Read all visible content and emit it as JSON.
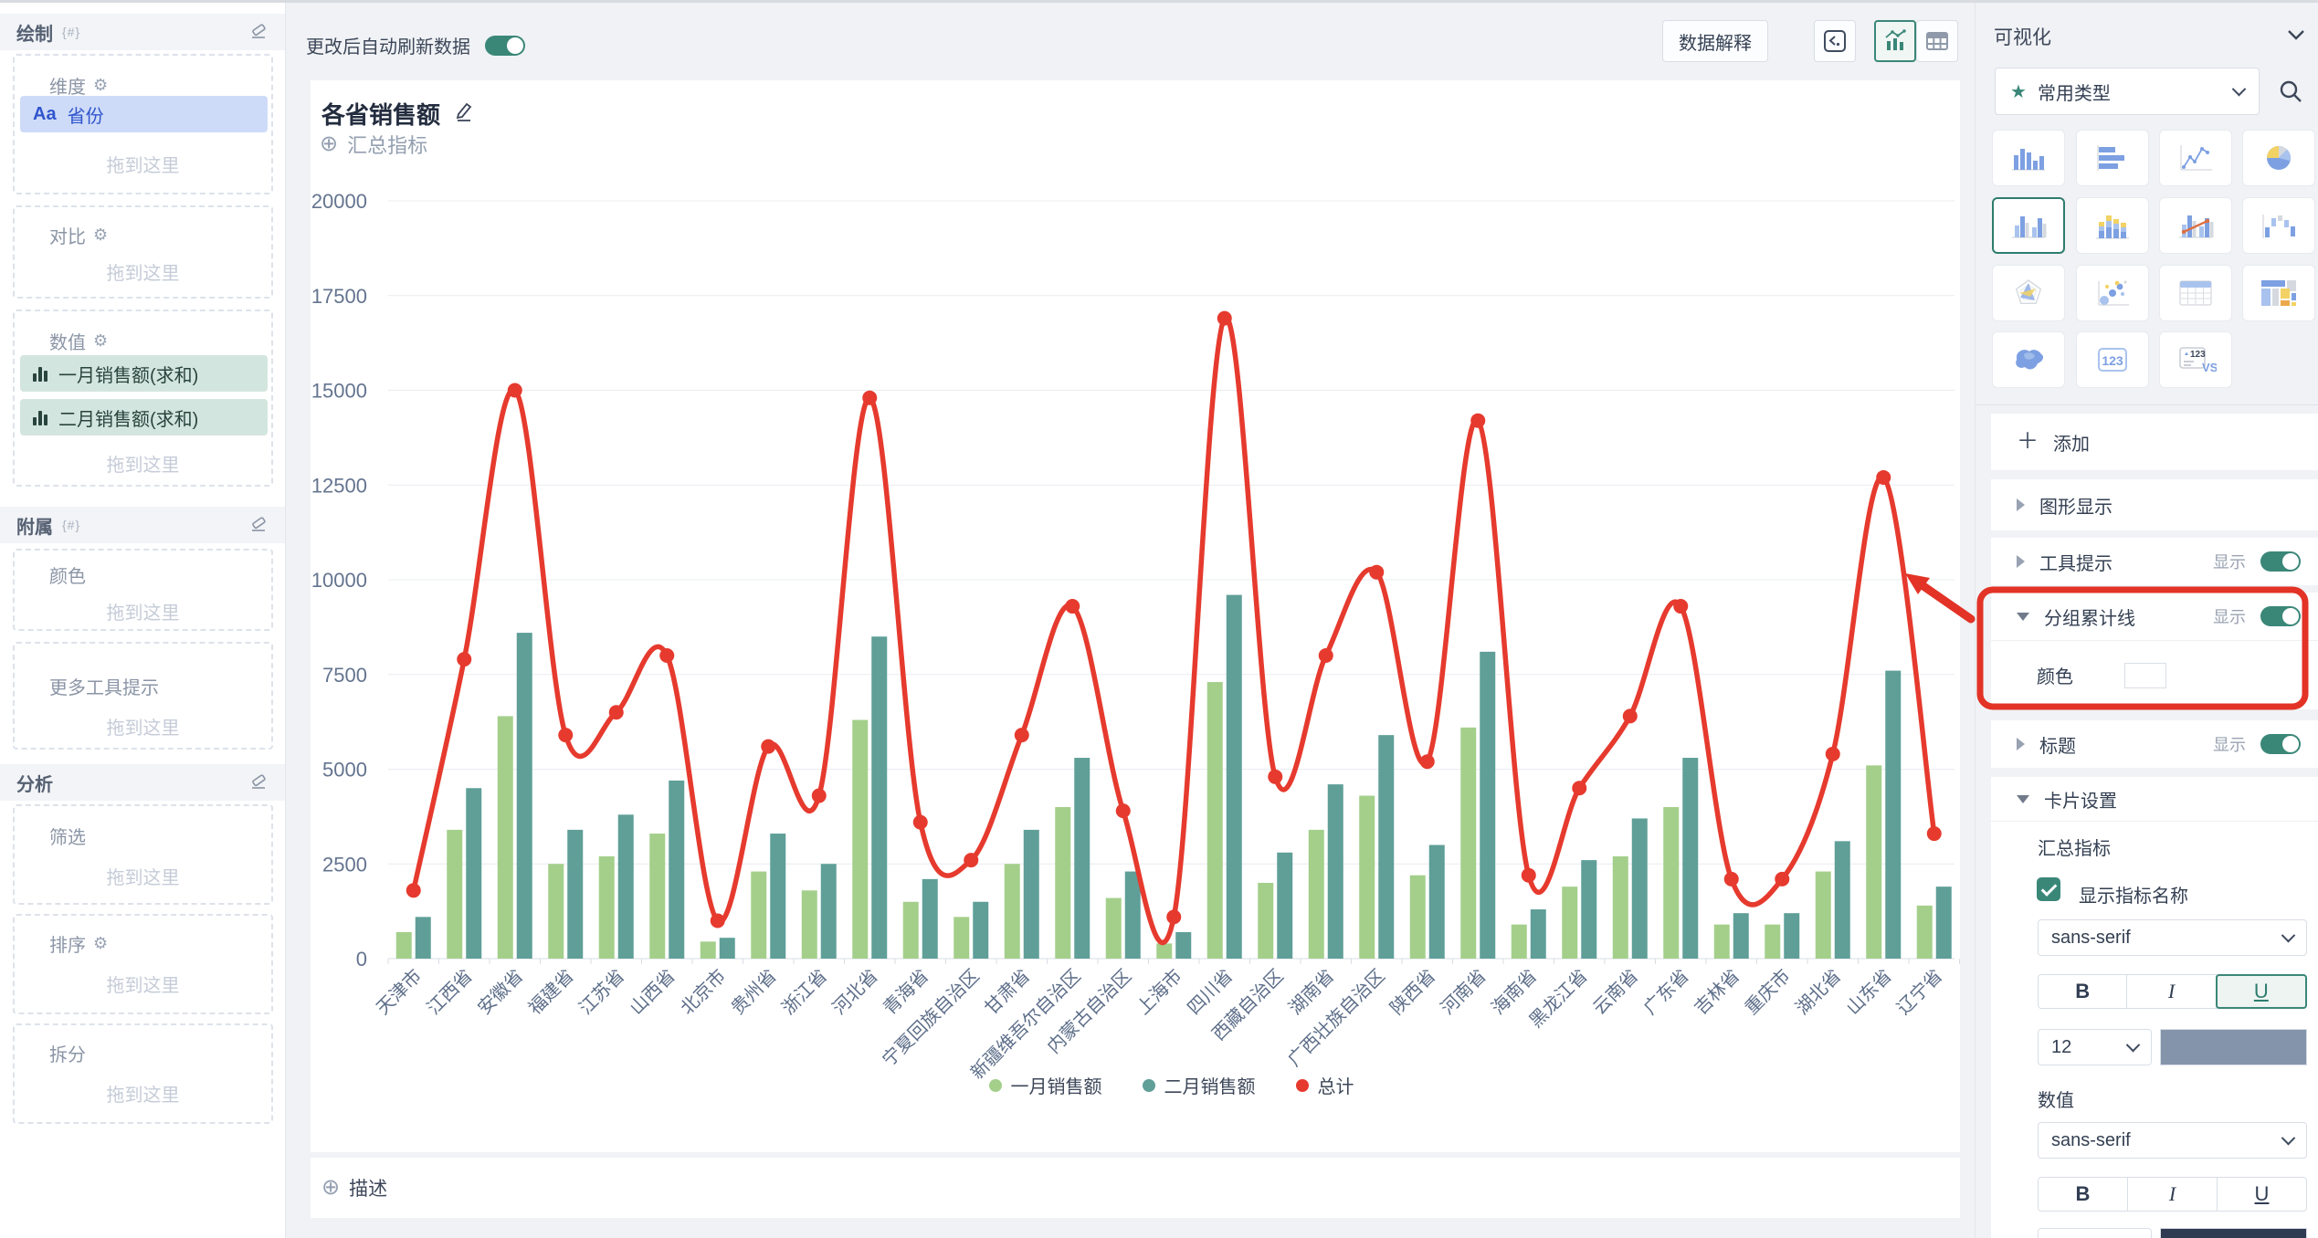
{
  "sidebar": {
    "draw_group": "绘制",
    "attach_group": "附属",
    "analysis_group": "分析",
    "brace_icon": "{#}",
    "dimension_label": "维度",
    "dimension_chip_prefix": "Aa",
    "dimension_chip": "省份",
    "compare_label": "对比",
    "measures_label": "数值",
    "measure_chips": [
      "一月销售额(求和)",
      "二月销售额(求和)"
    ],
    "color_label": "颜色",
    "more_tooltip_label": "更多工具提示",
    "filter_label": "筛选",
    "sort_label": "排序",
    "split_label": "拆分",
    "drop_placeholder": "拖到这里"
  },
  "topbar": {
    "auto_refresh_label": "更改后自动刷新数据",
    "auto_refresh_on": true,
    "explain_button": "数据解释"
  },
  "card": {
    "title": "各省销售额",
    "summary_metric": "汇总指标",
    "describe": "描述"
  },
  "chart_data": {
    "type": "bar",
    "subtype": "grouped bars with cumulative total line",
    "title": "各省销售额",
    "categories": [
      "天津市",
      "江西省",
      "安徽省",
      "福建省",
      "江苏省",
      "山西省",
      "北京市",
      "贵州省",
      "浙江省",
      "河北省",
      "青海省",
      "宁夏回族自治区",
      "甘肃省",
      "新疆维吾尔自治区",
      "内蒙古自治区",
      "上海市",
      "四川省",
      "西藏自治区",
      "湖南省",
      "广西壮族自治区",
      "陕西省",
      "河南省",
      "海南省",
      "黑龙江省",
      "云南省",
      "广东省",
      "吉林省",
      "重庆市",
      "湖北省",
      "山东省",
      "辽宁省"
    ],
    "series": [
      {
        "name": "一月销售额",
        "type": "bar",
        "color": "#a4cf8b",
        "values": [
          700,
          3400,
          6400,
          2500,
          2700,
          3300,
          450,
          2300,
          1800,
          6300,
          1500,
          1100,
          2500,
          4000,
          1600,
          400,
          7300,
          2000,
          3400,
          4300,
          2200,
          6100,
          900,
          1900,
          2700,
          4000,
          900,
          900,
          2300,
          5100,
          1400
        ]
      },
      {
        "name": "二月销售额",
        "type": "bar",
        "color": "#5f9f98",
        "values": [
          1100,
          4500,
          8600,
          3400,
          3800,
          4700,
          550,
          3300,
          2500,
          8500,
          2100,
          1500,
          3400,
          5300,
          2300,
          700,
          9600,
          2800,
          4600,
          5900,
          3000,
          8100,
          1300,
          2600,
          3700,
          5300,
          1200,
          1200,
          3100,
          7600,
          1900
        ]
      },
      {
        "name": "总计",
        "type": "line",
        "color": "#e63a2e",
        "values": [
          1800,
          7900,
          15000,
          5900,
          6500,
          8000,
          1000,
          5600,
          4300,
          14800,
          3600,
          2600,
          5900,
          9300,
          3900,
          1100,
          16900,
          4800,
          8000,
          10200,
          5200,
          14200,
          2200,
          4500,
          6400,
          9300,
          2100,
          2100,
          5400,
          12700,
          3300
        ]
      }
    ],
    "ylim": [
      0,
      20000
    ],
    "ytick_step": 2500,
    "grid": true,
    "legend_position": "bottom"
  },
  "panel": {
    "header": "可视化",
    "type_select": "常用类型",
    "add_label": "添加",
    "show_label": "显示",
    "rows": {
      "graph_display": "图形显示",
      "tooltip": "工具提示",
      "tooltip_on": true,
      "group_total_line": "分组累计线",
      "group_total_line_on": true,
      "color_label": "颜色",
      "line_color": "#e8281e",
      "title_row": "标题",
      "title_on": true,
      "card_settings": "卡片设置"
    },
    "card_settings": {
      "summary_label": "汇总指标",
      "show_metric_name": "显示指标名称",
      "show_metric_name_checked": true,
      "font_family": "sans-serif",
      "bold": "B",
      "italic": "I",
      "underline": "U",
      "font_size": "12",
      "name_color": "#8494aa",
      "value_label": "数值",
      "value_font_family": "sans-serif",
      "value_color": "#2f3b52"
    },
    "chart_types": [
      {
        "name": "column-chart",
        "selected": false
      },
      {
        "name": "bar-chart",
        "selected": false
      },
      {
        "name": "line-chart",
        "selected": false
      },
      {
        "name": "pie-chart",
        "selected": false
      },
      {
        "name": "grouped-column-chart",
        "selected": true
      },
      {
        "name": "stacked-column-chart",
        "selected": false
      },
      {
        "name": "combo-chart",
        "selected": false
      },
      {
        "name": "waterfall-chart",
        "selected": false
      },
      {
        "name": "radar-chart",
        "selected": false
      },
      {
        "name": "scatter-chart",
        "selected": false
      },
      {
        "name": "table-chart",
        "selected": false
      },
      {
        "name": "treemap-chart",
        "selected": false
      },
      {
        "name": "map-chart",
        "selected": false
      },
      {
        "name": "kpi-card",
        "selected": false
      },
      {
        "name": "comparison-card",
        "selected": false
      }
    ]
  },
  "annotation": {
    "color": "#e23326"
  }
}
